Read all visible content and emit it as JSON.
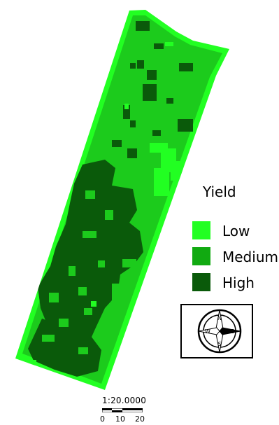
{
  "legend": {
    "title": "Yield",
    "items": [
      {
        "label": "Low",
        "color": "#22ff22"
      },
      {
        "label": "Medium",
        "color": "#11aa11"
      },
      {
        "label": "High",
        "color": "#0a5a0a"
      }
    ]
  },
  "compass": {
    "n": "N",
    "s": "S",
    "e": "E",
    "w": "W"
  },
  "scale": {
    "ratio": "1:20.0000",
    "ticks": [
      "0",
      "10",
      "20"
    ]
  },
  "colors": {
    "field_base": "#1ccb1c",
    "low": "#22ff22",
    "medium": "#11aa11",
    "high": "#0a5a0a"
  }
}
